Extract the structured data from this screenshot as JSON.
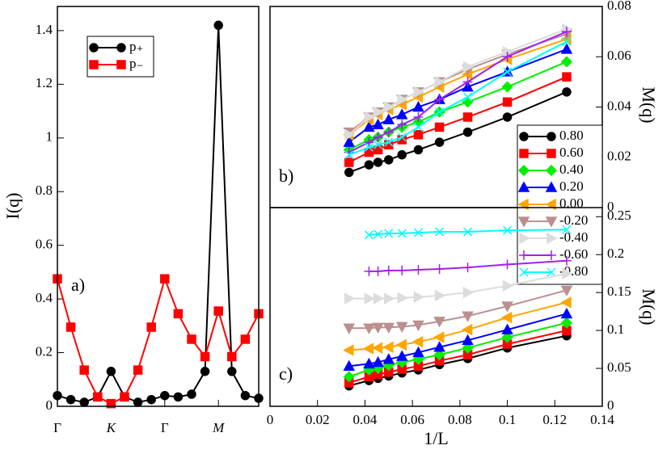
{
  "chart_data": [
    {
      "type": "line",
      "y_label": "I(q)",
      "annotation": "a)",
      "legend": "upper left",
      "x": [
        0,
        1,
        2,
        3,
        4,
        5,
        6,
        7,
        8,
        9,
        10,
        11,
        12,
        13,
        14,
        15
      ],
      "xlim": [
        0,
        15
      ],
      "xticks": [
        {
          "value": 0,
          "label": "Γ"
        },
        {
          "value": 4,
          "label": "K"
        },
        {
          "value": 8,
          "label": "Γ"
        },
        {
          "value": 12,
          "label": "M"
        }
      ],
      "ylim": [
        0,
        1.49
      ],
      "yticks": [
        0,
        0.2,
        0.4,
        0.6,
        0.8,
        1,
        1.2,
        1.4
      ],
      "series": [
        {
          "name": "p₊",
          "color": "#000000",
          "marker": "circle",
          "values": [
            0.04,
            0.025,
            0.015,
            0.035,
            0.13,
            0.035,
            0.015,
            0.025,
            0.04,
            0.035,
            0.045,
            0.13,
            1.42,
            0.13,
            0.04,
            0.03
          ]
        },
        {
          "name": "p₋",
          "color": "#ff0000",
          "marker": "square",
          "values": [
            0.475,
            0.295,
            0.135,
            0.035,
            0.01,
            0.035,
            0.135,
            0.295,
            0.475,
            0.345,
            0.25,
            0.185,
            0.355,
            0.185,
            0.25,
            0.345
          ]
        }
      ]
    },
    {
      "type": "line",
      "y_label": "M(q)",
      "annotation": "b)",
      "legend": "lower right",
      "x": [
        0.125,
        0.1,
        0.0833,
        0.0714,
        0.0625,
        0.0556,
        0.05,
        0.0455,
        0.0417,
        0.0333
      ],
      "xlim": [
        0,
        0.14
      ],
      "ylim": [
        0,
        0.08
      ],
      "yticks": [
        0,
        0.02,
        0.04,
        0.06,
        0.08
      ],
      "series": [
        {
          "name": "0.80",
          "color": "#000000",
          "marker": "circle",
          "values": [
            0.046,
            0.036,
            0.03,
            0.026,
            0.023,
            0.021,
            0.019,
            0.018,
            0.017,
            0.014
          ]
        },
        {
          "name": "0.60",
          "color": "#ff0000",
          "marker": "square",
          "values": [
            0.052,
            0.042,
            0.036,
            0.032,
            0.029,
            0.027,
            0.025,
            0.023,
            0.022,
            0.018
          ]
        },
        {
          "name": "0.40",
          "color": "#00ee00",
          "marker": "diamond",
          "values": [
            0.058,
            0.048,
            0.042,
            0.038,
            0.034,
            0.032,
            0.03,
            0.028,
            0.027,
            0.023
          ]
        },
        {
          "name": "0.20",
          "color": "#0000ff",
          "marker": "tri-up",
          "values": [
            0.063,
            0.054,
            0.048,
            0.043,
            0.04,
            0.037,
            0.035,
            0.033,
            0.032,
            0.026
          ]
        },
        {
          "name": "0.00",
          "color": "#ffa500",
          "marker": "tri-left",
          "values": [
            0.067,
            0.059,
            0.053,
            0.048,
            0.044,
            0.041,
            0.039,
            0.037,
            0.035,
            0.029
          ]
        },
        {
          "name": "-0.20",
          "color": "#bc8f8f",
          "marker": "tri-down",
          "values": [
            0.069,
            0.061,
            0.055,
            0.05,
            0.046,
            0.043,
            0.04,
            0.038,
            0.036,
            0.03
          ]
        },
        {
          "name": "-0.40",
          "color": "#dcdcdc",
          "marker": "tri-right",
          "values": [
            0.071,
            0.062,
            0.056,
            0.05,
            0.046,
            0.043,
            0.04,
            0.038,
            0.036,
            0.029
          ]
        },
        {
          "name": "-0.60",
          "color": "#a020f0",
          "marker": "plus",
          "values": [
            0.07,
            0.06,
            0.05,
            0.043,
            0.036,
            0.033,
            0.03,
            0.028,
            0.026,
            0.022
          ]
        },
        {
          "name": "-0.80",
          "color": "#00ffff",
          "marker": "cross",
          "values": [
            0.066,
            0.054,
            0.044,
            0.038,
            0.032,
            0.028,
            0.026,
            0.025,
            0.024,
            0.021
          ]
        }
      ]
    },
    {
      "type": "line",
      "y_label": "M(q)",
      "x_label": "1/L",
      "annotation": "c)",
      "x": [
        0.125,
        0.1,
        0.0833,
        0.0714,
        0.0625,
        0.0556,
        0.05,
        0.0455,
        0.0417,
        0.0333
      ],
      "xlim": [
        0,
        0.14
      ],
      "xticks": [
        0,
        0.02,
        0.04,
        0.06,
        0.08,
        0.1,
        0.12,
        0.14
      ],
      "ylim": [
        0,
        0.262
      ],
      "yticks": [
        0,
        0.05,
        0.1,
        0.15,
        0.2,
        0.25
      ],
      "series": [
        {
          "color": "#000000",
          "marker": "circle",
          "values": [
            0.093,
            0.077,
            0.063,
            0.055,
            0.048,
            0.044,
            0.04,
            0.037,
            0.034,
            0.027
          ]
        },
        {
          "color": "#ff0000",
          "marker": "square",
          "values": [
            0.1,
            0.082,
            0.068,
            0.06,
            0.053,
            0.049,
            0.045,
            0.042,
            0.039,
            0.031
          ]
        },
        {
          "color": "#00ee00",
          "marker": "diamond",
          "values": [
            0.11,
            0.091,
            0.077,
            0.068,
            0.062,
            0.058,
            0.054,
            0.05,
            0.048,
            0.039
          ]
        },
        {
          "color": "#0000ff",
          "marker": "tri-up",
          "values": [
            0.122,
            0.101,
            0.087,
            0.078,
            0.071,
            0.066,
            0.062,
            0.058,
            0.056,
            0.053
          ]
        },
        {
          "color": "#ffa500",
          "marker": "tri-left",
          "values": [
            0.137,
            0.117,
            0.101,
            0.091,
            0.085,
            0.081,
            0.078,
            0.077,
            0.076,
            0.074
          ]
        },
        {
          "color": "#bc8f8f",
          "marker": "tri-down",
          "values": [
            0.153,
            0.132,
            0.119,
            0.112,
            0.107,
            0.105,
            0.104,
            0.104,
            0.103,
            0.103
          ]
        },
        {
          "color": "#dcdcdc",
          "marker": "tri-right",
          "values": [
            0.175,
            0.159,
            0.15,
            0.146,
            0.144,
            0.143,
            0.142,
            0.142,
            0.142,
            0.142
          ]
        },
        {
          "color": "#a020f0",
          "marker": "plus",
          "values": [
            0.192,
            0.187,
            0.183,
            0.181,
            0.18,
            0.179,
            0.179,
            0.178,
            0.178,
            null
          ]
        },
        {
          "color": "#00ffff",
          "marker": "cross",
          "values": [
            0.233,
            0.232,
            0.23,
            0.23,
            0.229,
            0.228,
            0.228,
            0.227,
            0.226,
            null
          ]
        }
      ]
    }
  ]
}
